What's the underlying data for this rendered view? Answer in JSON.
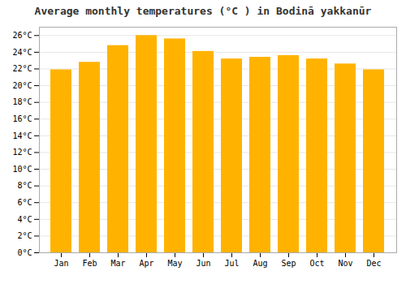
{
  "chart_data": {
    "type": "bar",
    "title": "Average monthly temperatures (°C ) in Bodinā yakkanūr",
    "categories": [
      "Jan",
      "Feb",
      "Mar",
      "Apr",
      "May",
      "Jun",
      "Jul",
      "Aug",
      "Sep",
      "Oct",
      "Nov",
      "Dec"
    ],
    "values": [
      21.9,
      22.8,
      24.8,
      26.0,
      25.6,
      24.1,
      23.2,
      23.4,
      23.6,
      23.2,
      22.6,
      21.9
    ],
    "color": "#FFB300",
    "ylim": [
      0,
      27
    ],
    "yticks": [
      {
        "value": 0,
        "label": "0°C"
      },
      {
        "value": 2,
        "label": "2°C"
      },
      {
        "value": 4,
        "label": "4°C"
      },
      {
        "value": 6,
        "label": "6°C"
      },
      {
        "value": 8,
        "label": "8°C"
      },
      {
        "value": 10,
        "label": "10°C"
      },
      {
        "value": 12,
        "label": "12°C"
      },
      {
        "value": 14,
        "label": "14°C"
      },
      {
        "value": 16,
        "label": "16°C"
      },
      {
        "value": 18,
        "label": "18°C"
      },
      {
        "value": 20,
        "label": "20°C"
      },
      {
        "value": 22,
        "label": "22°C"
      },
      {
        "value": 24,
        "label": "24°C"
      },
      {
        "value": 26,
        "label": "26°C"
      }
    ],
    "grid": true
  }
}
